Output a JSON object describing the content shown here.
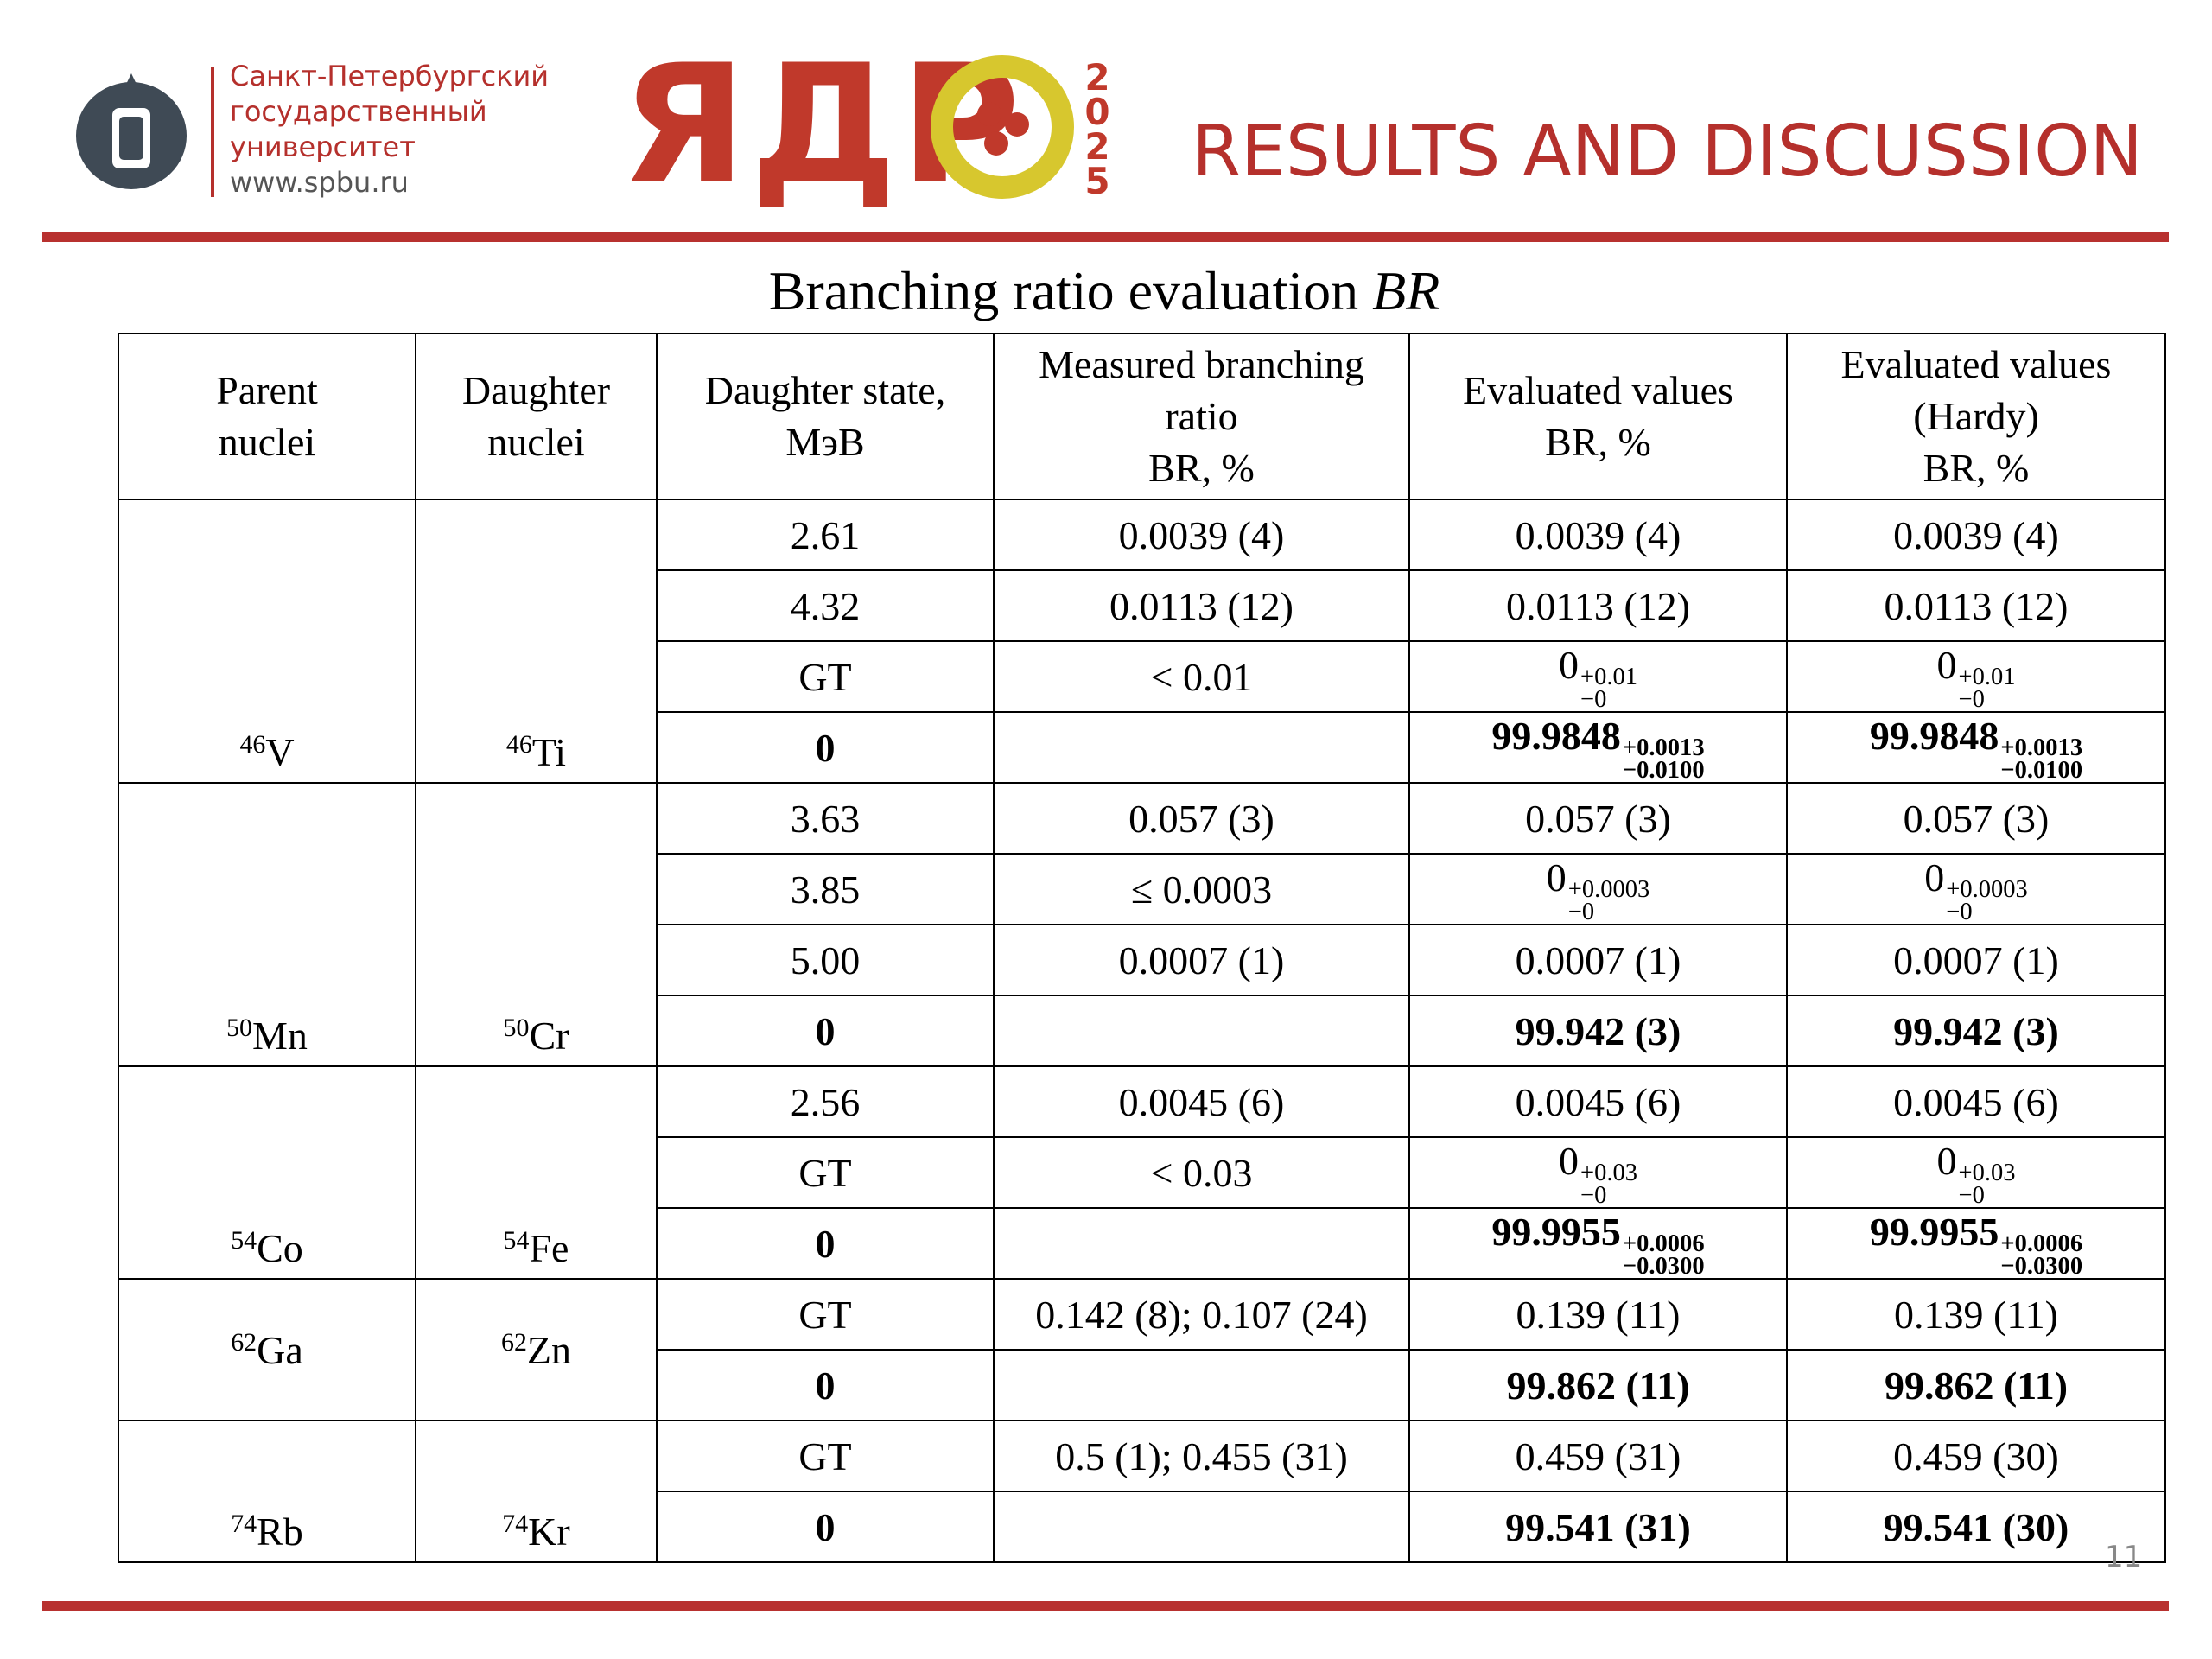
{
  "header": {
    "university": [
      "Санкт-Петербургский",
      "государственный",
      "университет",
      "www.spbu.ru"
    ],
    "logo_text": "ЯДР",
    "logo_year": "2025",
    "title": "RESULTS AND DISCUSSION"
  },
  "table": {
    "caption": {
      "text": "Branching ratio evaluation",
      "symbol": "BR"
    },
    "headers": [
      [
        "Parent",
        "nuclei"
      ],
      [
        "Daughter",
        "nuclei"
      ],
      [
        "Daughter state,",
        "МэВ"
      ],
      [
        "Measured branching",
        "ratio",
        "BR, %"
      ],
      [
        "Evaluated values",
        "BR, %"
      ],
      [
        "Evaluated values",
        "(Hardy)",
        "BR, %"
      ]
    ],
    "groups": [
      {
        "parent": {
          "mass": "46",
          "symbol": "V"
        },
        "daughter": {
          "mass": "46",
          "symbol": "Ti"
        },
        "rows": [
          {
            "state": "2.61",
            "measured": "0.0039 (4)",
            "evaluated": "0.0039 (4)",
            "hardy": "0.0039 (4)"
          },
          {
            "state": "4.32",
            "measured": "0.0113 (12)",
            "evaluated": "0.0113 (12)",
            "hardy": "0.0113 (12)"
          },
          {
            "state": "GT",
            "measured": "< 0.01",
            "evaluated": {
              "base": "0",
              "plus": "+0.01",
              "minus": "−0"
            },
            "hardy": {
              "base": "0",
              "plus": "+0.01",
              "minus": "−0"
            }
          },
          {
            "state": "0",
            "evaluated": {
              "base": "99.9848",
              "plus": "+0.0013",
              "minus": "−0.0100"
            },
            "hardy": {
              "base": "99.9848",
              "plus": "+0.0013",
              "minus": "−0.0100"
            }
          }
        ]
      },
      {
        "parent": {
          "mass": "50",
          "symbol": "Mn"
        },
        "daughter": {
          "mass": "50",
          "symbol": "Cr"
        },
        "rows": [
          {
            "state": "3.63",
            "measured": "0.057 (3)",
            "evaluated": "0.057 (3)",
            "hardy": "0.057 (3)"
          },
          {
            "state": "3.85",
            "measured": "≤ 0.0003",
            "evaluated": {
              "base": "0",
              "plus": "+0.0003",
              "minus": "−0"
            },
            "hardy": {
              "base": "0",
              "plus": "+0.0003",
              "minus": "−0"
            }
          },
          {
            "state": "5.00",
            "measured": "0.0007 (1)",
            "evaluated": "0.0007 (1)",
            "hardy": "0.0007 (1)"
          },
          {
            "state": "0",
            "evaluated": "99.942 (3)",
            "hardy": "99.942 (3)"
          }
        ]
      },
      {
        "parent": {
          "mass": "54",
          "symbol": "Co"
        },
        "daughter": {
          "mass": "54",
          "symbol": "Fe"
        },
        "rows": [
          {
            "state": "2.56",
            "measured": "0.0045 (6)",
            "evaluated": "0.0045 (6)",
            "hardy": "0.0045 (6)"
          },
          {
            "state": "GT",
            "measured": "< 0.03",
            "evaluated": {
              "base": "0",
              "plus": "+0.03",
              "minus": "−0"
            },
            "hardy": {
              "base": "0",
              "plus": "+0.03",
              "minus": "−0"
            }
          },
          {
            "state": "0",
            "evaluated": {
              "base": "99.9955",
              "plus": "+0.0006",
              "minus": "−0.0300"
            },
            "hardy": {
              "base": "99.9955",
              "plus": "+0.0006",
              "minus": "−0.0300"
            }
          }
        ]
      },
      {
        "parent": {
          "mass": "62",
          "symbol": "Ga"
        },
        "daughter": {
          "mass": "62",
          "symbol": "Zn"
        },
        "rows": [
          {
            "state": "GT",
            "measured": "0.142 (8); 0.107 (24)",
            "evaluated": "0.139 (11)",
            "hardy": "0.139 (11)"
          },
          {
            "state": "0",
            "evaluated": "99.862 (11)",
            "hardy": "99.862 (11)"
          }
        ]
      },
      {
        "parent": {
          "mass": "74",
          "symbol": "Rb"
        },
        "daughter": {
          "mass": "74",
          "symbol": "Kr"
        },
        "rows": [
          {
            "state": "GT",
            "measured": "0.5 (1); 0.455 (31)",
            "evaluated": "0.459 (31)",
            "hardy": "0.459 (30)"
          },
          {
            "state": "0",
            "evaluated": "99.541 (31)",
            "hardy": "99.541 (30)"
          }
        ]
      }
    ]
  },
  "page_number": "11"
}
